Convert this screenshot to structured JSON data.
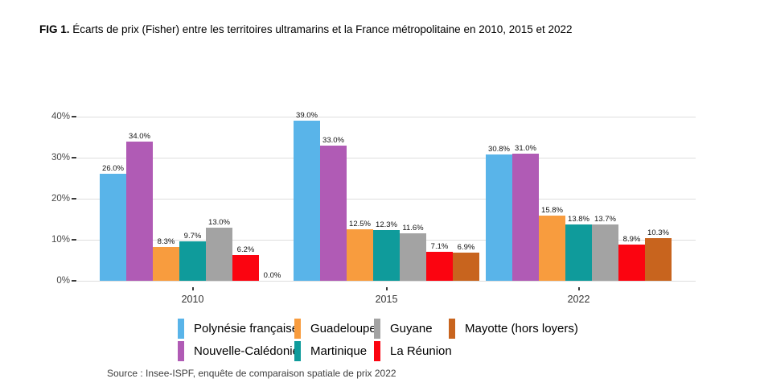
{
  "title": {
    "prefix": "FIG 1.",
    "rest": " Écarts de prix (Fisher) entre les territoires ultramarins et la France métropolitaine en 2010, 2015 et 2022"
  },
  "source_note": "Source : Insee-ISPF, enquête de comparaison spatiale de prix 2022",
  "chart_data": {
    "type": "bar",
    "title": "FIG 1. Écarts de prix (Fisher) entre les territoires ultramarins et la France métropolitaine en 2010, 2015 et 2022",
    "categories": [
      "2010",
      "2015",
      "2022"
    ],
    "series": [
      {
        "name": "Polynésie française",
        "color": "#59B4E9",
        "values": [
          26.0,
          39.0,
          30.8
        ]
      },
      {
        "name": "Nouvelle-Calédonie",
        "color": "#B05BB5",
        "values": [
          34.0,
          33.0,
          31.0
        ]
      },
      {
        "name": "Guadeloupe",
        "color": "#F89C3E",
        "values": [
          8.3,
          12.5,
          15.8
        ]
      },
      {
        "name": "Martinique",
        "color": "#0F9B9B",
        "values": [
          9.7,
          12.3,
          13.8
        ]
      },
      {
        "name": "Guyane",
        "color": "#A3A3A3",
        "values": [
          13.0,
          11.6,
          13.7
        ]
      },
      {
        "name": "La Réunion",
        "color": "#FB0410",
        "values": [
          6.2,
          7.1,
          8.9
        ]
      },
      {
        "name": "Mayotte (hors loyers)",
        "color": "#C8641E",
        "values": [
          0.0,
          6.9,
          10.3
        ]
      }
    ],
    "value_labels": [
      "26.0%",
      "34.0%",
      "8.3%",
      "9.7%",
      "13.0%",
      "6.2%",
      "0.0%",
      "39.0%",
      "33.0%",
      "12.5%",
      "12.3%",
      "11.6%",
      "7.1%",
      "6.9%",
      "30.8%",
      "31.0%",
      "15.8%",
      "13.8%",
      "13.7%",
      "8.9%",
      "10.3%"
    ],
    "xlabel": "",
    "ylabel": "",
    "ylim": [
      0,
      40
    ],
    "yticks": [
      {
        "value": 0,
        "label": "0%"
      },
      {
        "value": 10,
        "label": "10%"
      },
      {
        "value": 20,
        "label": "20%"
      },
      {
        "value": 30,
        "label": "30%"
      },
      {
        "value": 40,
        "label": "40%"
      }
    ],
    "grid": true,
    "legend_position": "bottom",
    "legend_rows": [
      [
        "Polynésie française",
        "Guadeloupe",
        "Guyane",
        "Mayotte (hors loyers)"
      ],
      [
        "Nouvelle-Calédonie",
        "Martinique",
        "La Réunion"
      ]
    ]
  }
}
